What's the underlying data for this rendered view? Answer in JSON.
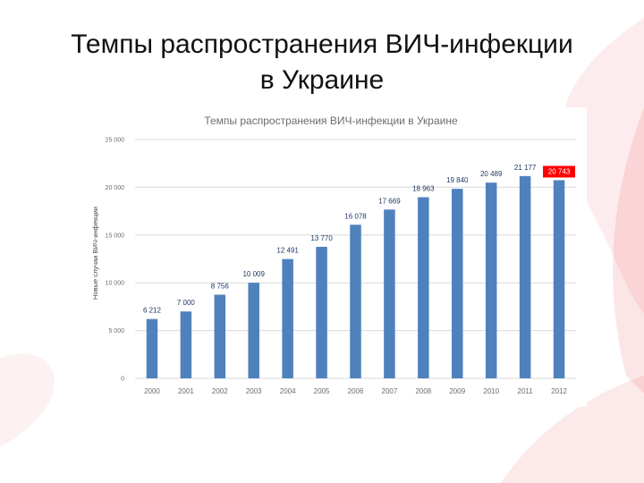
{
  "slide": {
    "title_line1": "Темпы распространения ВИЧ-инфекции",
    "title_line2": "в Украине"
  },
  "colors": {
    "bar": "#4f81bd",
    "highlight": "#ff0000",
    "grid": "#d9d9d9",
    "accent": "#e8474b"
  },
  "chart_data": {
    "type": "bar",
    "title": "Темпы распространения ВИЧ-инфекции в Украине",
    "xlabel": "",
    "ylabel": "Новые случаи ВИЧ-инфекции",
    "categories": [
      "2000",
      "2001",
      "2002",
      "2003",
      "2004",
      "2005",
      "2006",
      "2007",
      "2008",
      "2009",
      "2010",
      "2011",
      "2012"
    ],
    "values": [
      6212,
      7000,
      8756,
      10009,
      12491,
      13770,
      16078,
      17669,
      18963,
      19840,
      20489,
      21177,
      20743
    ],
    "data_labels": [
      "6 212",
      "7 000",
      "8 756",
      "10 009",
      "12 491",
      "13 770",
      "16 078",
      "17 669",
      "18 963",
      "19 840",
      "20 489",
      "21 177",
      "20 743"
    ],
    "highlighted_index": 12,
    "ylim": [
      0,
      25000
    ],
    "yticks": [
      0,
      5000,
      10000,
      15000,
      20000,
      25000
    ],
    "ytick_labels": [
      "0",
      "5 000",
      "10 000",
      "15 000",
      "20 000",
      "25 000"
    ],
    "grid": true,
    "legend": "none"
  }
}
